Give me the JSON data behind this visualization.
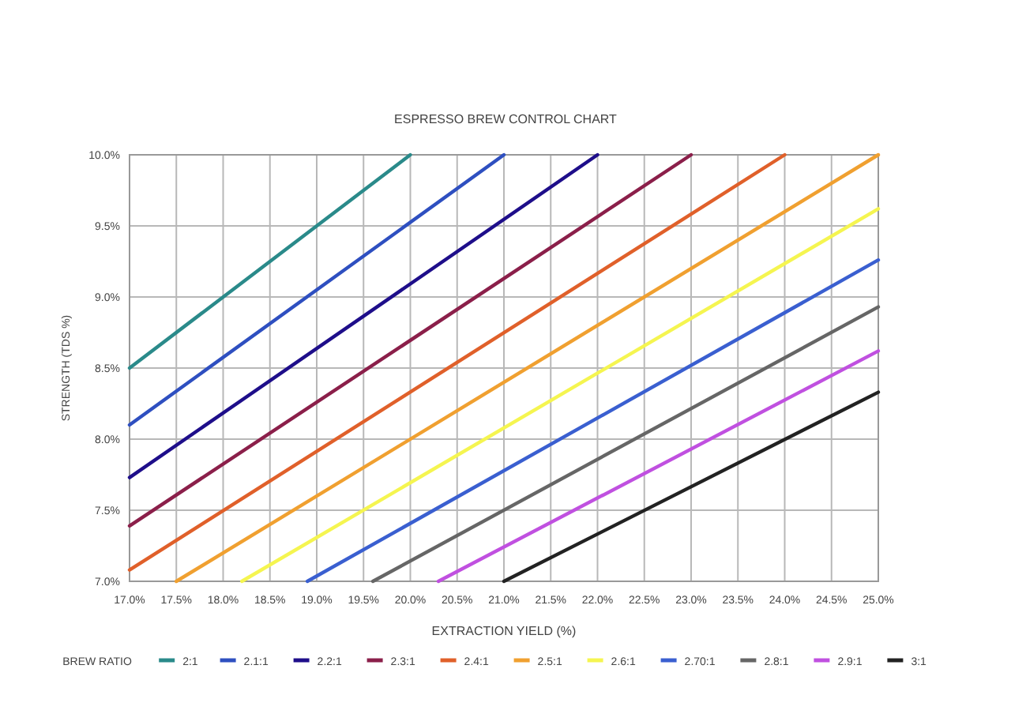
{
  "chart_data": {
    "type": "line",
    "title": "ESPRESSO BREW CONTROL CHART",
    "xlabel": "EXTRACTION YIELD (%)",
    "ylabel": "STRENGTH (TDS %)",
    "legend_title": "BREW RATIO",
    "legend": "bottom",
    "grid": true,
    "marker": "none",
    "line_style": "solid",
    "xlim": [
      17,
      25
    ],
    "ylim": [
      7,
      10
    ],
    "xticks": [
      {
        "value": 17,
        "label": "17.0%"
      },
      {
        "value": 17.5,
        "label": "17.5%"
      },
      {
        "value": 18,
        "label": "18.0%"
      },
      {
        "value": 18.5,
        "label": "18.5%"
      },
      {
        "value": 19,
        "label": "19.0%"
      },
      {
        "value": 19.5,
        "label": "19.5%"
      },
      {
        "value": 20,
        "label": "20.0%"
      },
      {
        "value": 20.5,
        "label": "20.5%"
      },
      {
        "value": 21,
        "label": "21.0%"
      },
      {
        "value": 21.5,
        "label": "21.5%"
      },
      {
        "value": 22,
        "label": "22.0%"
      },
      {
        "value": 22.5,
        "label": "22.5%"
      },
      {
        "value": 23,
        "label": "23.0%"
      },
      {
        "value": 23.5,
        "label": "23.5%"
      },
      {
        "value": 24,
        "label": "24.0%"
      },
      {
        "value": 24.5,
        "label": "24.5%"
      },
      {
        "value": 25,
        "label": "25.0%"
      }
    ],
    "yticks": [
      {
        "value": 7,
        "label": "7.0%"
      },
      {
        "value": 7.5,
        "label": "7.5%"
      },
      {
        "value": 8,
        "label": "8.0%"
      },
      {
        "value": 8.5,
        "label": "8.5%"
      },
      {
        "value": 9,
        "label": "9.0%"
      },
      {
        "value": 9.5,
        "label": "9.5%"
      },
      {
        "value": 10,
        "label": "10.0%"
      }
    ],
    "series": [
      {
        "name": "2:1",
        "color": "#2a8a8a",
        "x": [
          17,
          20
        ],
        "values": [
          8.5,
          10
        ]
      },
      {
        "name": "2.1:1",
        "color": "#2e4fc0",
        "x": [
          17,
          21
        ],
        "values": [
          8.1,
          10
        ]
      },
      {
        "name": "2.2:1",
        "color": "#1e0e8a",
        "x": [
          17,
          22
        ],
        "values": [
          7.73,
          10
        ]
      },
      {
        "name": "2.3:1",
        "color": "#8b1f4a",
        "x": [
          17,
          23
        ],
        "values": [
          7.39,
          10
        ]
      },
      {
        "name": "2.4:1",
        "color": "#e0602a",
        "x": [
          17,
          24
        ],
        "values": [
          7.08,
          10
        ]
      },
      {
        "name": "2.5:1",
        "color": "#f0a030",
        "x": [
          17.5,
          25
        ],
        "values": [
          7,
          10
        ]
      },
      {
        "name": "2.6:1",
        "color": "#f5f550",
        "x": [
          18.2,
          25
        ],
        "values": [
          7,
          9.62
        ]
      },
      {
        "name": "2.70:1",
        "color": "#3a5fd0",
        "x": [
          18.9,
          25
        ],
        "values": [
          7,
          9.26
        ]
      },
      {
        "name": "2.8:1",
        "color": "#666666",
        "x": [
          19.6,
          25
        ],
        "values": [
          7,
          8.93
        ]
      },
      {
        "name": "2.9:1",
        "color": "#c050e0",
        "x": [
          20.3,
          25
        ],
        "values": [
          7,
          8.62
        ]
      },
      {
        "name": "3:1",
        "color": "#222222",
        "x": [
          21,
          25
        ],
        "values": [
          7,
          8.33
        ]
      }
    ]
  }
}
